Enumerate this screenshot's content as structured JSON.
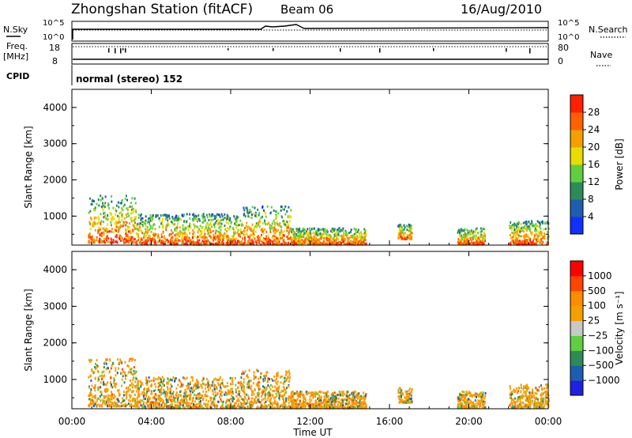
{
  "header": {
    "station": "Zhongshan Station (fitACF)",
    "beam": "Beam 06",
    "date": "16/Aug/2010"
  },
  "top_panels": {
    "nsky_label": "N.Sky",
    "nsearch_label": "N.Search",
    "nsky_ticks": [
      "10^5",
      "10^0"
    ],
    "nsearch_ticks": [
      "10^5",
      "10^0"
    ],
    "freq_label": "Freq.",
    "freq_unit": "[MHz]",
    "freq_ticks": [
      "18",
      "8"
    ],
    "nave_label": "Nave",
    "nave_ticks": [
      "80",
      "0"
    ],
    "cpid_label": "CPID",
    "cpid_text": "normal (stereo) 152"
  },
  "colors": {
    "power_scale": [
      "#1030ff",
      "#1e5eb0",
      "#2e8b57",
      "#5fcf3f",
      "#e8dc00",
      "#f5a000",
      "#ff6000",
      "#ff2000"
    ],
    "velocity_scale": [
      "#2020e0",
      "#1e5eb0",
      "#2e8b57",
      "#5fcf3f",
      "#c8c8c8",
      "#f5a000",
      "#ff8c00",
      "#ff4500",
      "#ff0000"
    ]
  },
  "chart_data": [
    {
      "type": "heatmap",
      "name": "power",
      "ylabel": "Slant Range [km]",
      "yticks": [
        "4000",
        "3000",
        "2000",
        "1000"
      ],
      "ytick_values": [
        4000,
        3000,
        2000,
        1000
      ],
      "ylim": [
        200,
        4500
      ],
      "xlim": [
        0,
        24
      ],
      "xticks": [
        "00:00",
        "04:00",
        "08:00",
        "12:00",
        "16:00",
        "20:00",
        "00:00"
      ],
      "xtick_values": [
        0,
        4,
        8,
        12,
        16,
        20,
        24
      ],
      "colorbar_label": "Power [dB]",
      "colorbar_ticks": [
        "28",
        "24",
        "20",
        "16",
        "12",
        "8",
        "4"
      ],
      "regions": [
        {
          "t0": 0.8,
          "t1": 3.2,
          "r0": 300,
          "r1": 1600
        },
        {
          "t0": 3.2,
          "t1": 8.5,
          "r0": 250,
          "r1": 1100
        },
        {
          "t0": 8.5,
          "t1": 11.0,
          "r0": 250,
          "r1": 1300
        },
        {
          "t0": 11.0,
          "t1": 14.8,
          "r0": 250,
          "r1": 700
        },
        {
          "t0": 16.4,
          "t1": 17.1,
          "r0": 400,
          "r1": 800
        },
        {
          "t0": 19.4,
          "t1": 20.8,
          "r0": 250,
          "r1": 700
        },
        {
          "t0": 22.0,
          "t1": 24.0,
          "r0": 250,
          "r1": 900
        }
      ]
    },
    {
      "type": "heatmap",
      "name": "velocity",
      "ylabel": "Slant Range [km]",
      "yticks": [
        "4000",
        "3000",
        "2000",
        "1000"
      ],
      "ytick_values": [
        4000,
        3000,
        2000,
        1000
      ],
      "ylim": [
        200,
        4500
      ],
      "xlim": [
        0,
        24
      ],
      "xticks": [
        "00:00",
        "04:00",
        "08:00",
        "12:00",
        "16:00",
        "20:00",
        "00:00"
      ],
      "xtick_values": [
        0,
        4,
        8,
        12,
        16,
        20,
        24
      ],
      "xlabel": "Time UT",
      "colorbar_label": "Velocity [m s⁻¹]",
      "colorbar_ticks": [
        "1000",
        "500",
        "100",
        "25",
        "−25",
        "−100",
        "−500",
        "−1000"
      ],
      "regions": [
        {
          "t0": 0.8,
          "t1": 3.2,
          "r0": 300,
          "r1": 1600
        },
        {
          "t0": 3.2,
          "t1": 8.5,
          "r0": 250,
          "r1": 1100
        },
        {
          "t0": 8.5,
          "t1": 11.0,
          "r0": 250,
          "r1": 1300
        },
        {
          "t0": 11.0,
          "t1": 14.8,
          "r0": 250,
          "r1": 700
        },
        {
          "t0": 16.4,
          "t1": 17.1,
          "r0": 400,
          "r1": 800
        },
        {
          "t0": 19.4,
          "t1": 20.8,
          "r0": 250,
          "r1": 700
        },
        {
          "t0": 22.0,
          "t1": 24.0,
          "r0": 250,
          "r1": 900
        }
      ]
    }
  ]
}
